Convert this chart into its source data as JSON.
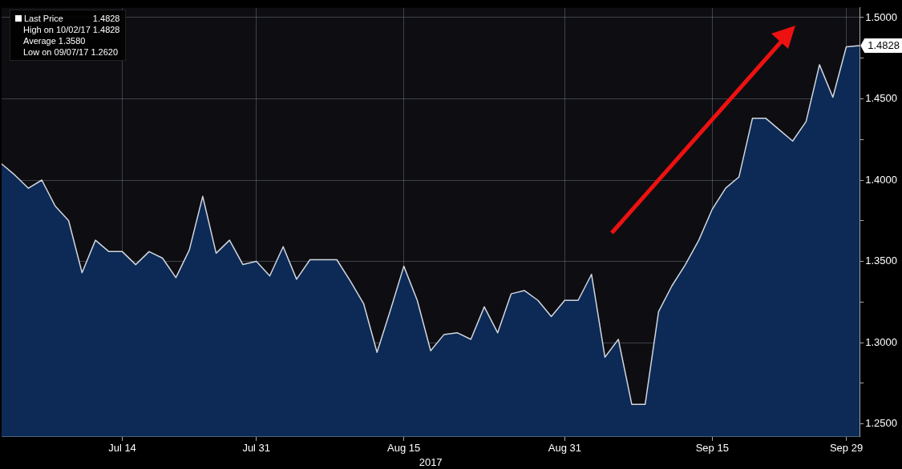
{
  "chart_data": {
    "type": "area",
    "xlabel": "2017",
    "categories": [
      null,
      null,
      null,
      null,
      null,
      null,
      null,
      null,
      null,
      "Jul 14",
      null,
      null,
      null,
      null,
      null,
      null,
      null,
      null,
      null,
      "Jul 31",
      null,
      null,
      null,
      null,
      null,
      null,
      null,
      null,
      null,
      null,
      "Aug 15",
      null,
      null,
      null,
      null,
      null,
      null,
      null,
      null,
      null,
      null,
      null,
      "Aug 31",
      null,
      null,
      null,
      null,
      null,
      null,
      null,
      null,
      null,
      null,
      "Sep 15",
      null,
      null,
      null,
      null,
      null,
      null,
      null,
      null,
      null,
      "Sep 29",
      null
    ],
    "series": [
      {
        "name": "Last Price",
        "color": "#0c2a55",
        "values": [
          1.41,
          1.403,
          1.395,
          1.4,
          1.384,
          1.375,
          1.343,
          1.363,
          1.356,
          1.356,
          1.348,
          1.356,
          1.352,
          1.34,
          1.357,
          1.39,
          1.355,
          1.363,
          1.348,
          1.35,
          1.341,
          1.359,
          1.339,
          1.351,
          1.351,
          1.351,
          1.338,
          1.324,
          1.294,
          1.32,
          1.347,
          1.326,
          1.295,
          1.305,
          1.306,
          1.302,
          1.322,
          1.306,
          1.33,
          1.332,
          1.326,
          1.316,
          1.326,
          1.326,
          1.342,
          1.291,
          1.302,
          1.262,
          1.262,
          1.319,
          1.335,
          1.348,
          1.363,
          1.382,
          1.395,
          1.402,
          1.438,
          1.438,
          1.431,
          1.424,
          1.436,
          1.471,
          1.451,
          1.482,
          1.4828
        ]
      }
    ],
    "ylim": [
      1.242,
      1.506
    ],
    "yticks": [
      {
        "value": 1.25,
        "label": "1.2500"
      },
      {
        "value": 1.275,
        "label": null
      },
      {
        "value": 1.3,
        "label": "1.3000"
      },
      {
        "value": 1.325,
        "label": null
      },
      {
        "value": 1.35,
        "label": "1.3500"
      },
      {
        "value": 1.375,
        "label": null
      },
      {
        "value": 1.4,
        "label": "1.4000"
      },
      {
        "value": 1.425,
        "label": null
      },
      {
        "value": 1.45,
        "label": "1.4500"
      },
      {
        "value": 1.475,
        "label": null
      },
      {
        "value": 1.5,
        "label": "1.5000"
      }
    ],
    "grid": true,
    "legend": "top left",
    "annotations": [
      "1.4828",
      "High on 10/02/17 1.4828",
      "Average 1.3580",
      "Low on 09/07/17 1.2620",
      "1.4828"
    ]
  }
}
